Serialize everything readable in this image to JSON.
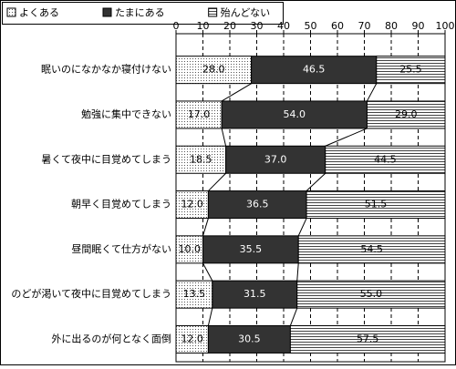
{
  "chart_data": {
    "type": "stacked_barh",
    "categories": [
      "眠いのになかなか寝付けない",
      "勉強に集中できない",
      "暑くて夜中に目覚めてしまう",
      "朝早く目覚めてしまう",
      "昼間眠くて仕方がない",
      "のどが渇いて夜中に目覚めてしまう",
      "外に出るのが何となく面倒"
    ],
    "series": [
      {
        "name": "よくある",
        "color": "#ffffff",
        "pattern": "dots",
        "values": [
          28,
          17,
          18.5,
          12,
          10,
          13.5,
          12
        ],
        "value_labels": [
          "28.0",
          "17.0",
          "18.5",
          "12.0",
          "10.0",
          "13.5",
          "12.0"
        ]
      },
      {
        "name": "たまにある",
        "color": "#333333",
        "pattern": "solid",
        "values": [
          46.5,
          54,
          37,
          36.5,
          35.5,
          31.5,
          30.5
        ],
        "value_labels": [
          "46.5",
          "54.0",
          "37.0",
          "36.5",
          "35.5",
          "31.5",
          "30.5"
        ]
      },
      {
        "name": "殆んどない",
        "color": "#ffffff",
        "pattern": "hlines",
        "values": [
          25.5,
          29,
          44.5,
          51.5,
          54.5,
          55,
          57.5
        ],
        "value_labels": [
          "25.5",
          "29.0",
          "44.5",
          "51.5",
          "54.5",
          "55.0",
          "57.5"
        ]
      }
    ],
    "xlim": [
      0,
      100
    ],
    "xticks": [
      0,
      10,
      20,
      30,
      40,
      50,
      60,
      70,
      80,
      90,
      100
    ],
    "grid": true,
    "connector_lines": true
  }
}
